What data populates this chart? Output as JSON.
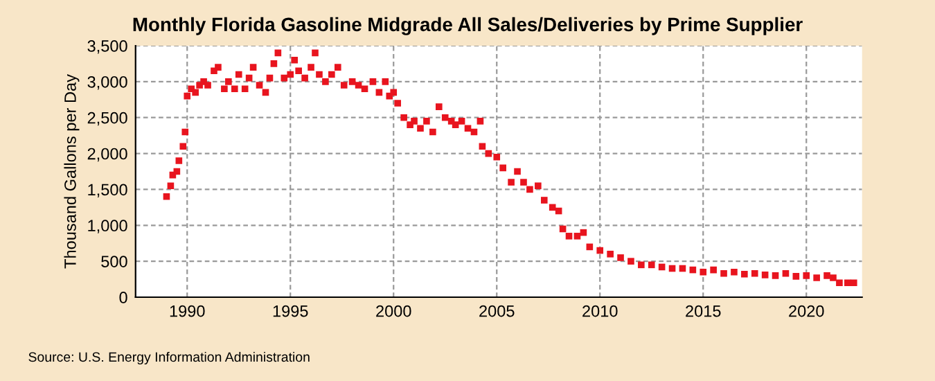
{
  "chart_data": {
    "type": "scatter",
    "title": "Monthly Florida Gasoline Midgrade All Sales/Deliveries by Prime Supplier",
    "ylabel": "Thousand Gallons per Day",
    "annotations": [
      "Source: U.S. Energy Information Administration"
    ],
    "x": [
      1989.0,
      1989.2,
      1989.3,
      1989.5,
      1989.6,
      1989.8,
      1989.9,
      1990.0,
      1990.2,
      1990.4,
      1990.6,
      1990.8,
      1991.0,
      1991.3,
      1991.5,
      1991.8,
      1992.0,
      1992.3,
      1992.5,
      1992.8,
      1993.0,
      1993.2,
      1993.5,
      1993.8,
      1994.0,
      1994.2,
      1994.4,
      1994.7,
      1995.0,
      1995.2,
      1995.4,
      1995.7,
      1996.0,
      1996.2,
      1996.4,
      1996.7,
      1997.0,
      1997.3,
      1997.6,
      1998.0,
      1998.3,
      1998.6,
      1999.0,
      1999.3,
      1999.6,
      1999.8,
      2000.0,
      2000.2,
      2000.5,
      2000.8,
      2001.0,
      2001.3,
      2001.6,
      2001.9,
      2002.2,
      2002.5,
      2002.8,
      2003.0,
      2003.3,
      2003.6,
      2003.9,
      2004.2,
      2004.3,
      2004.6,
      2005.0,
      2005.3,
      2005.7,
      2006.0,
      2006.3,
      2006.6,
      2007.0,
      2007.3,
      2007.7,
      2008.0,
      2008.2,
      2008.5,
      2008.9,
      2009.2,
      2009.5,
      2010.0,
      2010.5,
      2011.0,
      2011.5,
      2012.0,
      2012.5,
      2013.0,
      2013.5,
      2014.0,
      2014.5,
      2015.0,
      2015.5,
      2016.0,
      2016.5,
      2017.0,
      2017.5,
      2018.0,
      2018.5,
      2019.0,
      2019.5,
      2020.0,
      2020.5,
      2021.0,
      2021.3,
      2021.6,
      2022.0,
      2022.3
    ],
    "series": [
      {
        "color": "#e8141e",
        "values": [
          1400,
          1550,
          1700,
          1750,
          1900,
          2100,
          2300,
          2800,
          2900,
          2850,
          2950,
          3000,
          2950,
          3150,
          3200,
          2900,
          3000,
          2900,
          3100,
          2900,
          3050,
          3200,
          2950,
          2850,
          3050,
          3250,
          3400,
          3050,
          3100,
          3300,
          3150,
          3050,
          3200,
          3400,
          3100,
          3000,
          3100,
          3200,
          2950,
          3000,
          2950,
          2900,
          3000,
          2850,
          3000,
          2800,
          2850,
          2700,
          2500,
          2400,
          2450,
          2350,
          2450,
          2300,
          2650,
          2500,
          2450,
          2400,
          2450,
          2350,
          2300,
          2450,
          2100,
          2000,
          1950,
          1800,
          1600,
          1750,
          1600,
          1500,
          1550,
          1350,
          1250,
          1200,
          950,
          850,
          850,
          900,
          700,
          650,
          600,
          550,
          500,
          450,
          450,
          420,
          400,
          400,
          380,
          350,
          380,
          330,
          350,
          320,
          330,
          310,
          300,
          330,
          290,
          300,
          270,
          300,
          270,
          200,
          200,
          200
        ]
      }
    ],
    "xlim": [
      1987.5,
      2022.7
    ],
    "xticks": [
      1990,
      1995,
      2000,
      2005,
      2010,
      2015,
      2020
    ],
    "ylim": [
      0,
      3500
    ],
    "yticks": [
      {
        "value": 0,
        "label": "0"
      },
      {
        "value": 500,
        "label": "500"
      },
      {
        "value": 1000,
        "label": "1,000"
      },
      {
        "value": 1500,
        "label": "1,500"
      },
      {
        "value": 2000,
        "label": "2,000"
      },
      {
        "value": 2500,
        "label": "2,500"
      },
      {
        "value": 3000,
        "label": "3,000"
      },
      {
        "value": 3500,
        "label": "3,500"
      }
    ],
    "grid": true,
    "marker": "square"
  }
}
